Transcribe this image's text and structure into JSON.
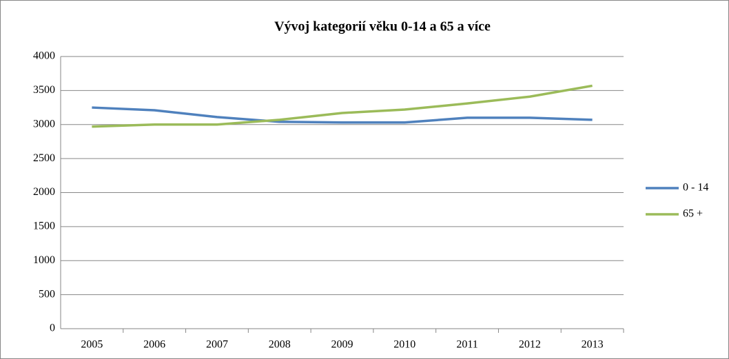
{
  "chart_data": {
    "type": "line",
    "title": "Vývoj kategorií věku 0-14 a 65 a více",
    "categories": [
      "2005",
      "2006",
      "2007",
      "2008",
      "2009",
      "2010",
      "2011",
      "2012",
      "2013"
    ],
    "series": [
      {
        "name": "0 - 14",
        "color": "#4f81bd",
        "values": [
          3250,
          3210,
          3110,
          3040,
          3030,
          3030,
          3100,
          3100,
          3070
        ]
      },
      {
        "name": "65 +",
        "color": "#9bbb59",
        "values": [
          2970,
          3000,
          3000,
          3070,
          3170,
          3220,
          3310,
          3410,
          3570
        ]
      }
    ],
    "ylim": [
      0,
      4000
    ],
    "yticks": [
      0,
      500,
      1000,
      1500,
      2000,
      2500,
      3000,
      3500,
      4000
    ],
    "grid": true,
    "legend": "right"
  }
}
